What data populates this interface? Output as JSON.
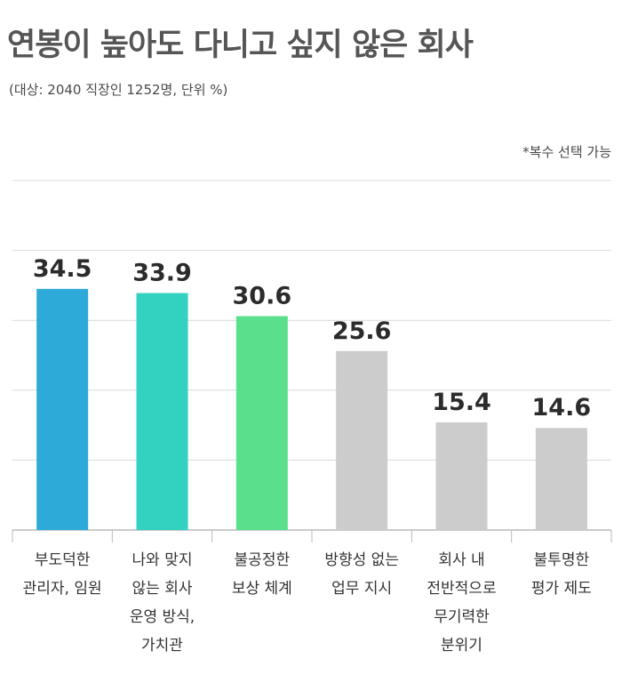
{
  "header": {
    "title": "연봉이 높아도 다니고 싶지 않은 회사",
    "subtitle": "(대상: 2040 직장인 1252명, 단위 %)",
    "note": "*복수 선택 가능"
  },
  "chart_data": {
    "type": "bar",
    "title": "연봉이 높아도 다니고 싶지 않은 회사",
    "subtitle": "(대상: 2040 직장인 1252명, 단위 %)",
    "annotation": "*복수 선택 가능",
    "xlabel": "",
    "ylabel": "",
    "unit": "%",
    "ylim": [
      0,
      50
    ],
    "grid": true,
    "legend": "none",
    "categories": [
      "부도덕한\n관리자, 임원",
      "나와 맞지\n않는 회사\n운영 방식,\n가치관",
      "불공정한\n보상 체계",
      "방향성 없는\n업무 지시",
      "회사 내\n전반적으로\n무기력한\n분위기",
      "불투명한\n평가 제도"
    ],
    "values": [
      34.5,
      33.9,
      30.6,
      25.6,
      15.4,
      14.6
    ],
    "value_labels": [
      "34.5",
      "33.9",
      "30.6",
      "25.6",
      "15.4",
      "14.6"
    ],
    "colors": [
      "#2eaad8",
      "#33d1c0",
      "#5ae08c",
      "#cccccc",
      "#cccccc",
      "#cccccc"
    ],
    "gridline_color": "#d9d9d9",
    "axis_color": "#bbbbbb",
    "label_color": "#333333"
  }
}
